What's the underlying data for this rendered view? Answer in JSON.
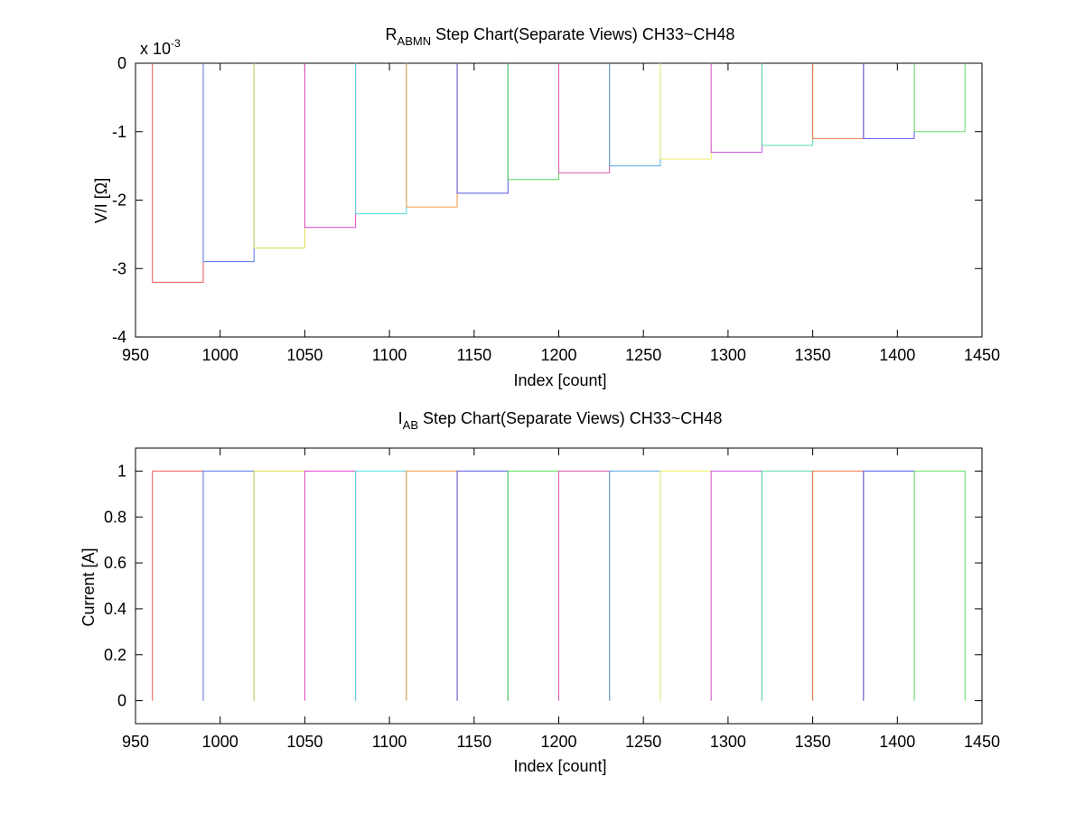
{
  "chart_data": [
    {
      "type": "line",
      "title_main": "R",
      "title_sub": "ABMN",
      "title_rest": " Step Chart(Separate Views) CH33~CH48",
      "xlabel": "Index [count]",
      "ylabel": "V/I [Ω]",
      "exponent_prefix": "x 10",
      "exponent_power": "-3",
      "xlim": [
        950,
        1450
      ],
      "ylim": [
        -4,
        0
      ],
      "xticks": [
        950,
        1000,
        1050,
        1100,
        1150,
        1200,
        1250,
        1300,
        1350,
        1400,
        1450
      ],
      "yticks": [
        0,
        -1,
        -2,
        -3,
        -4
      ],
      "ytick_labels": [
        "0",
        "-1",
        "-2",
        "-3",
        "-4"
      ],
      "grid": false,
      "series": [
        {
          "color": "#ee5555",
          "x": [
            960,
            990
          ],
          "level": -3.2
        },
        {
          "color": "#5577ee",
          "x": [
            990,
            1020
          ],
          "level": -2.9
        },
        {
          "color": "#dddd55",
          "x": [
            1020,
            1050
          ],
          "level": -2.7
        },
        {
          "color": "#dd44cc",
          "x": [
            1050,
            1080
          ],
          "level": -2.4
        },
        {
          "color": "#55dddd",
          "x": [
            1080,
            1110
          ],
          "level": -2.2
        },
        {
          "color": "#ee9944",
          "x": [
            1110,
            1140
          ],
          "level": -2.1
        },
        {
          "color": "#5555dd",
          "x": [
            1140,
            1170
          ],
          "level": -1.9
        },
        {
          "color": "#55dd55",
          "x": [
            1170,
            1200
          ],
          "level": -1.7
        },
        {
          "color": "#dd55aa",
          "x": [
            1200,
            1230
          ],
          "level": -1.6
        },
        {
          "color": "#55aadd",
          "x": [
            1230,
            1260
          ],
          "level": -1.5
        },
        {
          "color": "#eeee66",
          "x": [
            1260,
            1290
          ],
          "level": -1.4
        },
        {
          "color": "#cc55dd",
          "x": [
            1290,
            1320
          ],
          "level": -1.3
        },
        {
          "color": "#55ddaa",
          "x": [
            1320,
            1350
          ],
          "level": -1.2
        },
        {
          "color": "#ee7744",
          "x": [
            1350,
            1380
          ],
          "level": -1.1
        },
        {
          "color": "#5555ee",
          "x": [
            1380,
            1410
          ],
          "level": -1.1
        },
        {
          "color": "#66dd66",
          "x": [
            1410,
            1440
          ],
          "level": -1.0
        }
      ]
    },
    {
      "type": "line",
      "title_main": "I",
      "title_sub": "AB",
      "title_rest": " Step Chart(Separate Views) CH33~CH48",
      "xlabel": "Index [count]",
      "ylabel": "Current [A]",
      "xlim": [
        950,
        1450
      ],
      "ylim": [
        -0.1,
        1.1
      ],
      "xticks": [
        950,
        1000,
        1050,
        1100,
        1150,
        1200,
        1250,
        1300,
        1350,
        1400,
        1450
      ],
      "yticks": [
        0,
        0.2,
        0.4,
        0.6,
        0.8,
        1
      ],
      "ytick_labels": [
        "0",
        "0.2",
        "0.4",
        "0.6",
        "0.8",
        "1"
      ],
      "grid": false,
      "series": [
        {
          "color": "#ee5555",
          "x": [
            960,
            990
          ],
          "level": 1
        },
        {
          "color": "#5577ee",
          "x": [
            990,
            1020
          ],
          "level": 1
        },
        {
          "color": "#dddd55",
          "x": [
            1020,
            1050
          ],
          "level": 1
        },
        {
          "color": "#dd44cc",
          "x": [
            1050,
            1080
          ],
          "level": 1
        },
        {
          "color": "#55dddd",
          "x": [
            1080,
            1110
          ],
          "level": 1
        },
        {
          "color": "#ee9944",
          "x": [
            1110,
            1140
          ],
          "level": 1
        },
        {
          "color": "#5555dd",
          "x": [
            1140,
            1170
          ],
          "level": 1
        },
        {
          "color": "#55dd55",
          "x": [
            1170,
            1200
          ],
          "level": 1
        },
        {
          "color": "#dd55aa",
          "x": [
            1200,
            1230
          ],
          "level": 1
        },
        {
          "color": "#55aadd",
          "x": [
            1230,
            1260
          ],
          "level": 1
        },
        {
          "color": "#eeee66",
          "x": [
            1260,
            1290
          ],
          "level": 1
        },
        {
          "color": "#cc55dd",
          "x": [
            1290,
            1320
          ],
          "level": 1
        },
        {
          "color": "#55ddaa",
          "x": [
            1320,
            1350
          ],
          "level": 1
        },
        {
          "color": "#ee7744",
          "x": [
            1350,
            1380
          ],
          "level": 1
        },
        {
          "color": "#5555ee",
          "x": [
            1380,
            1410
          ],
          "level": 1
        },
        {
          "color": "#66dd66",
          "x": [
            1410,
            1440
          ],
          "level": 1
        }
      ]
    }
  ]
}
